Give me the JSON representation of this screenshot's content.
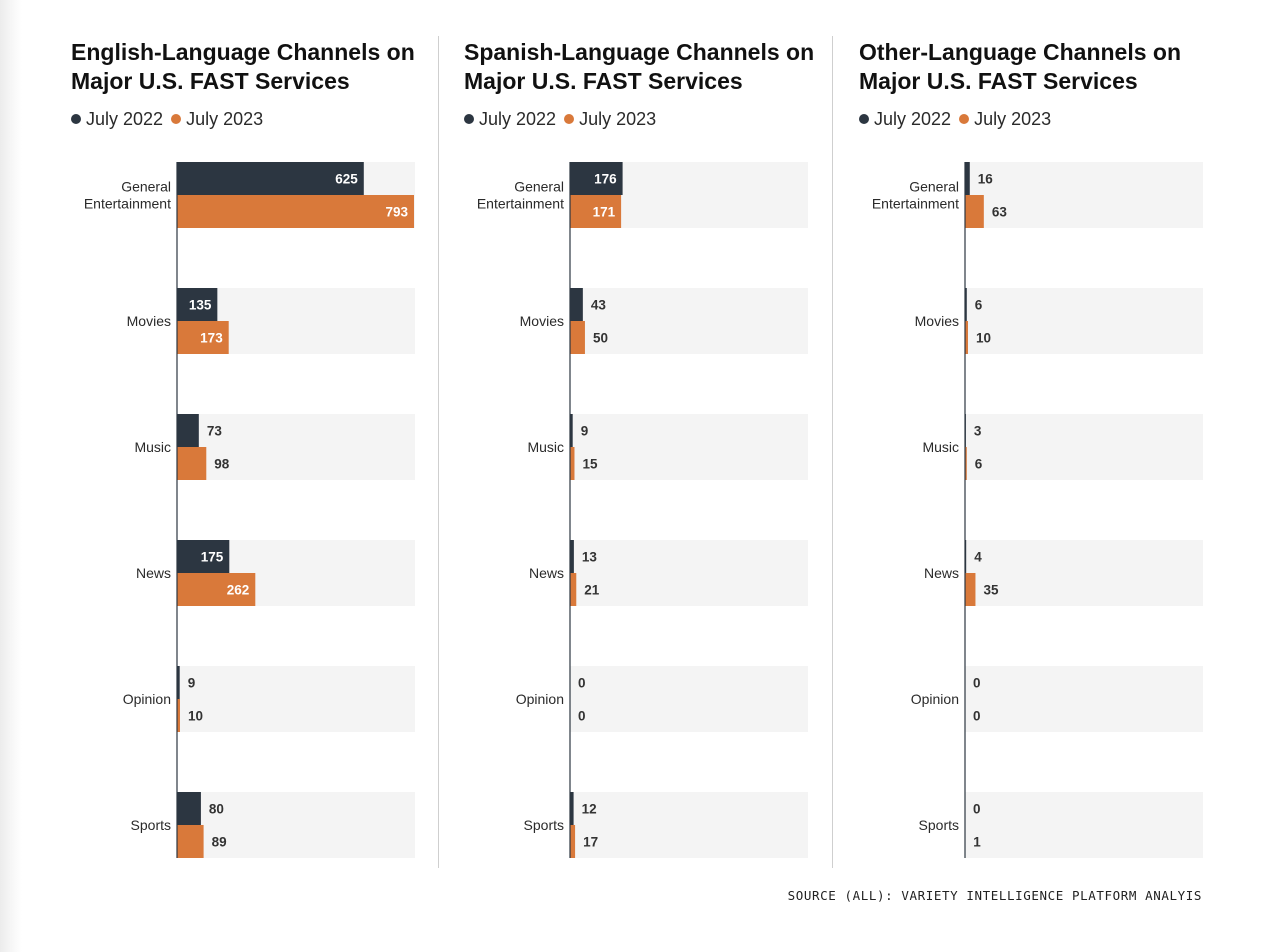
{
  "colors": {
    "july_2022": "#2c3641",
    "july_2023": "#d9793a",
    "row_bg": "#f4f4f4"
  },
  "source": "SOURCE (ALL): VARIETY INTELLIGENCE PLATFORM ANALYIS",
  "chart_data": [
    {
      "type": "bar",
      "orientation": "horizontal",
      "title": "English-Language Channels on Major U.S. FAST Services",
      "legend": [
        "July 2022",
        "July 2023"
      ],
      "legend_position": "top-left",
      "categories": [
        "General Entertainment",
        "Movies",
        "Music",
        "News",
        "Opinion",
        "Sports"
      ],
      "category_lines": [
        [
          "General",
          "Entertainment"
        ],
        [
          "Movies"
        ],
        [
          "Music"
        ],
        [
          "News"
        ],
        [
          "Opinion"
        ],
        [
          "Sports"
        ]
      ],
      "series": [
        {
          "name": "July 2022",
          "values": [
            625,
            135,
            73,
            175,
            9,
            80
          ]
        },
        {
          "name": "July 2023",
          "values": [
            793,
            173,
            98,
            262,
            10,
            89
          ]
        }
      ],
      "xlim": [
        0,
        793
      ],
      "grid": false
    },
    {
      "type": "bar",
      "orientation": "horizontal",
      "title": "Spanish-Language Channels on Major U.S. FAST Services",
      "legend": [
        "July 2022",
        "July 2023"
      ],
      "legend_position": "top-left",
      "categories": [
        "General Entertainment",
        "Movies",
        "Music",
        "News",
        "Opinion",
        "Sports"
      ],
      "category_lines": [
        [
          "General",
          "Entertainment"
        ],
        [
          "Movies"
        ],
        [
          "Music"
        ],
        [
          "News"
        ],
        [
          "Opinion"
        ],
        [
          "Sports"
        ]
      ],
      "series": [
        {
          "name": "July 2022",
          "values": [
            176,
            43,
            9,
            13,
            0,
            12
          ]
        },
        {
          "name": "July 2023",
          "values": [
            171,
            50,
            15,
            21,
            0,
            17
          ]
        }
      ],
      "xlim": [
        0,
        793
      ],
      "grid": false
    },
    {
      "type": "bar",
      "orientation": "horizontal",
      "title": "Other-Language Channels on Major U.S. FAST Services",
      "legend": [
        "July 2022",
        "July 2023"
      ],
      "legend_position": "top-left",
      "categories": [
        "General Entertainment",
        "Movies",
        "Music",
        "News",
        "Opinion",
        "Sports"
      ],
      "category_lines": [
        [
          "General",
          "Entertainment"
        ],
        [
          "Movies"
        ],
        [
          "Music"
        ],
        [
          "News"
        ],
        [
          "Opinion"
        ],
        [
          "Sports"
        ]
      ],
      "series": [
        {
          "name": "July 2022",
          "values": [
            16,
            6,
            3,
            4,
            0,
            0
          ]
        },
        {
          "name": "July 2023",
          "values": [
            63,
            10,
            6,
            35,
            0,
            1
          ]
        }
      ],
      "xlim": [
        0,
        793
      ],
      "grid": false
    }
  ]
}
